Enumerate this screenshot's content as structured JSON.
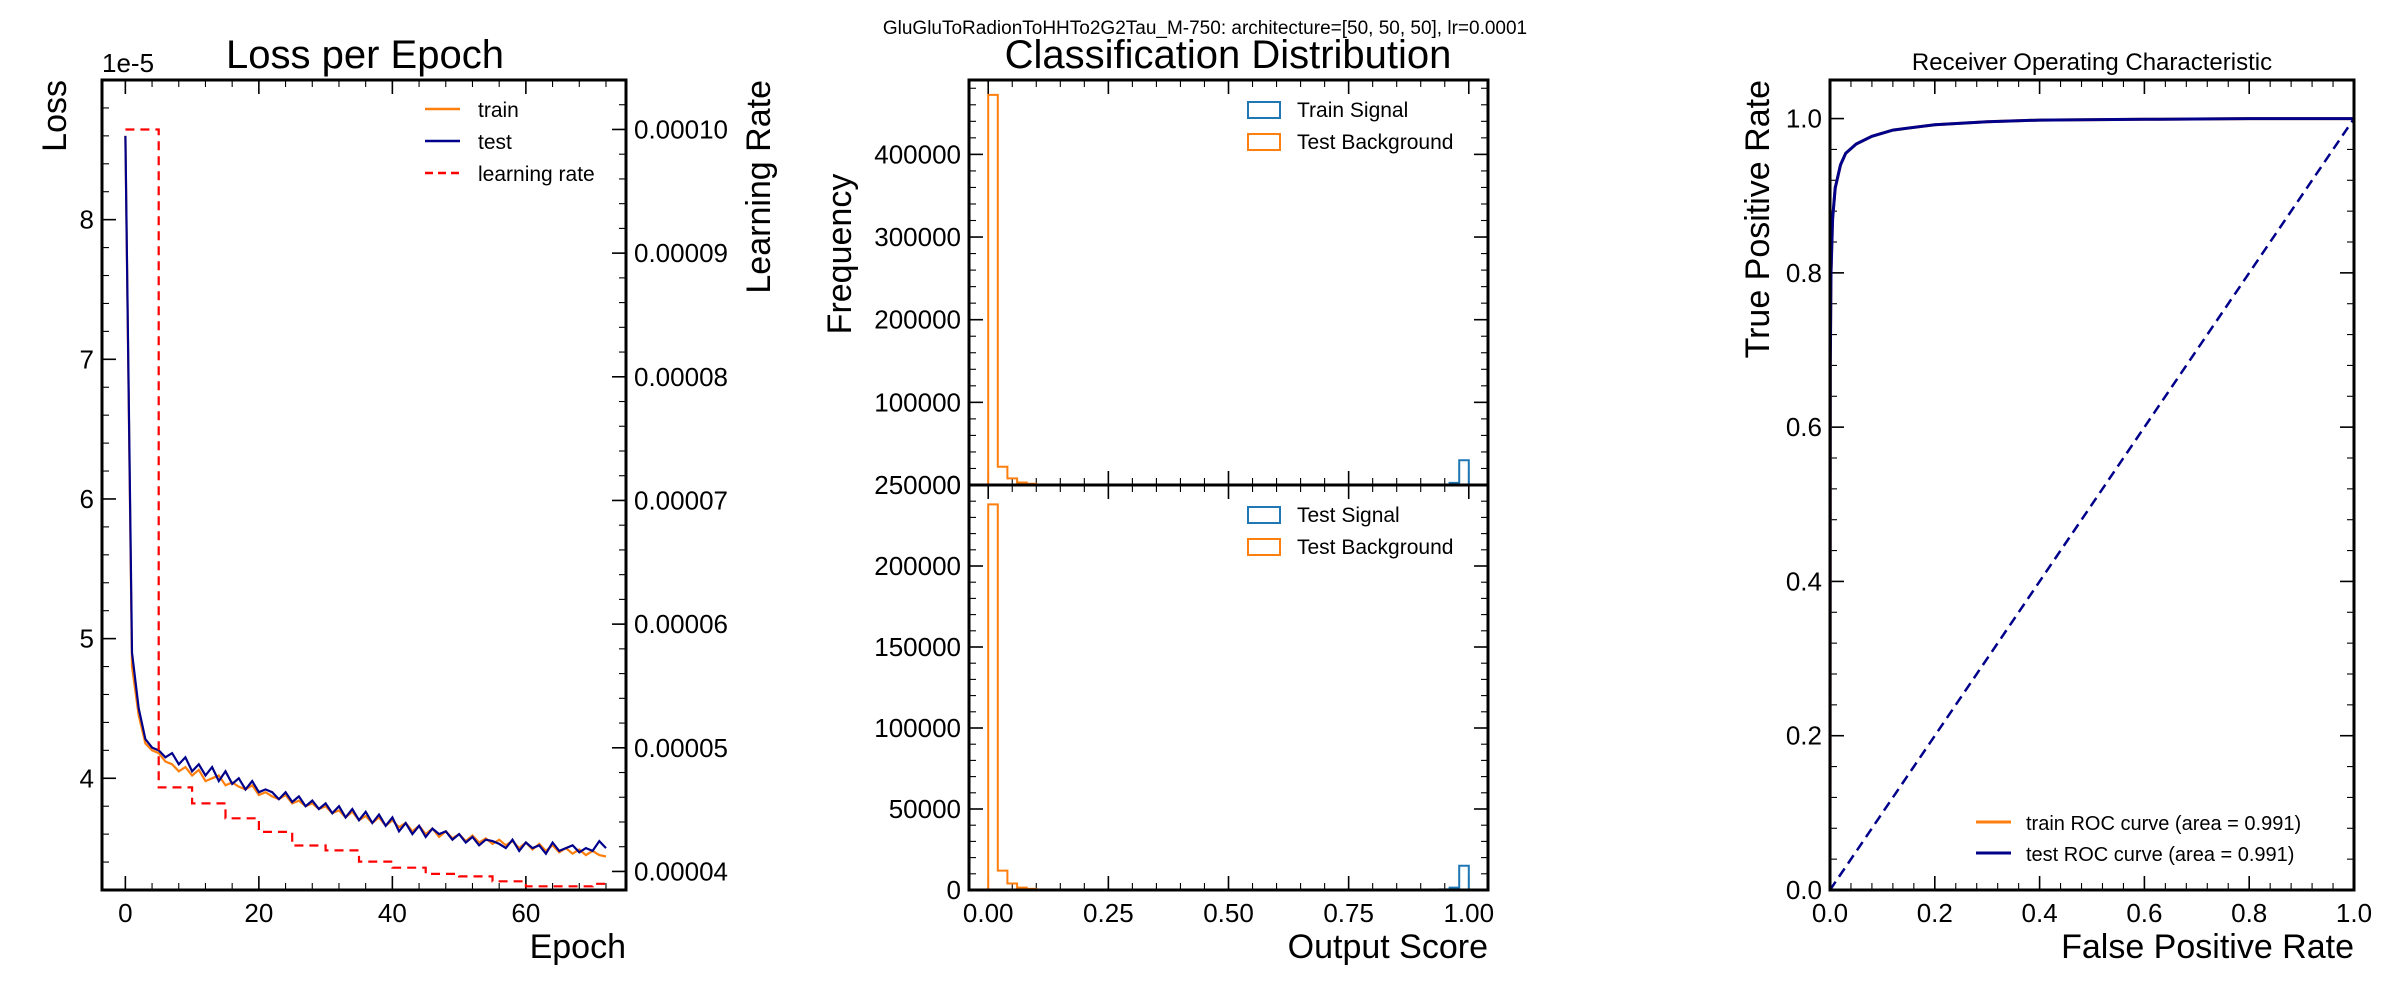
{
  "suptitle": "GluGluToRadionToHHTo2G2Tau_M-750: architecture=[50, 50, 50], lr=0.0001",
  "chart_data": [
    {
      "type": "line",
      "title": "Loss per Epoch",
      "xlabel": "Epoch",
      "ylabel": "Loss",
      "y2label": "Learning Rate",
      "offset_text": "1e-5",
      "xlim": [
        -3.5,
        75
      ],
      "ylim": [
        3.2,
        9.0
      ],
      "y2lim": [
        3.85e-05,
        0.000104
      ],
      "xticks": [
        0,
        20,
        40,
        60
      ],
      "xtick_labels": [
        "0",
        "20",
        "40",
        "60"
      ],
      "yticks": [
        4,
        5,
        6,
        7,
        8
      ],
      "ytick_labels": [
        "4",
        "5",
        "6",
        "7",
        "8"
      ],
      "y2ticks": [
        4e-05,
        5e-05,
        6e-05,
        7e-05,
        8e-05,
        9e-05,
        0.0001
      ],
      "y2tick_labels": [
        "0.00004",
        "0.00005",
        "0.00006",
        "0.00007",
        "0.00008",
        "0.00009",
        "0.00010"
      ],
      "legend_position": "top-right",
      "series": [
        {
          "name": "train",
          "color": "#ff7f0e",
          "style": "solid",
          "axis": "left",
          "x": [
            0,
            1,
            2,
            3,
            4,
            5,
            6,
            7,
            8,
            9,
            10,
            11,
            12,
            13,
            14,
            15,
            16,
            17,
            18,
            19,
            20,
            21,
            22,
            23,
            24,
            25,
            26,
            27,
            28,
            29,
            30,
            31,
            32,
            33,
            34,
            35,
            36,
            37,
            38,
            39,
            40,
            41,
            42,
            43,
            44,
            45,
            46,
            47,
            48,
            49,
            50,
            51,
            52,
            53,
            54,
            55,
            56,
            57,
            58,
            59,
            60,
            61,
            62,
            63,
            64,
            65,
            66,
            67,
            68,
            69,
            70,
            71,
            72
          ],
          "y": [
            8.6,
            4.8,
            4.45,
            4.25,
            4.2,
            4.18,
            4.12,
            4.1,
            4.05,
            4.08,
            4.02,
            4.06,
            3.98,
            4.0,
            4.02,
            3.95,
            3.97,
            3.94,
            3.92,
            3.95,
            3.88,
            3.9,
            3.87,
            3.85,
            3.88,
            3.82,
            3.84,
            3.8,
            3.82,
            3.78,
            3.8,
            3.75,
            3.77,
            3.72,
            3.76,
            3.7,
            3.73,
            3.68,
            3.72,
            3.66,
            3.7,
            3.65,
            3.68,
            3.62,
            3.66,
            3.6,
            3.64,
            3.58,
            3.62,
            3.57,
            3.6,
            3.55,
            3.59,
            3.54,
            3.57,
            3.53,
            3.56,
            3.52,
            3.55,
            3.5,
            3.54,
            3.49,
            3.53,
            3.48,
            3.52,
            3.47,
            3.5,
            3.46,
            3.49,
            3.45,
            3.48,
            3.45,
            3.44
          ]
        },
        {
          "name": "test",
          "color": "#00008b",
          "style": "solid",
          "axis": "left",
          "x": [
            0,
            1,
            2,
            3,
            4,
            5,
            6,
            7,
            8,
            9,
            10,
            11,
            12,
            13,
            14,
            15,
            16,
            17,
            18,
            19,
            20,
            21,
            22,
            23,
            24,
            25,
            26,
            27,
            28,
            29,
            30,
            31,
            32,
            33,
            34,
            35,
            36,
            37,
            38,
            39,
            40,
            41,
            42,
            43,
            44,
            45,
            46,
            47,
            48,
            49,
            50,
            51,
            52,
            53,
            54,
            55,
            56,
            57,
            58,
            59,
            60,
            61,
            62,
            63,
            64,
            65,
            66,
            67,
            68,
            69,
            70,
            71,
            72
          ],
          "y": [
            8.6,
            4.9,
            4.5,
            4.28,
            4.22,
            4.2,
            4.15,
            4.18,
            4.1,
            4.15,
            4.05,
            4.1,
            4.02,
            4.08,
            3.98,
            4.05,
            3.96,
            4.0,
            3.92,
            3.98,
            3.9,
            3.92,
            3.9,
            3.85,
            3.9,
            3.83,
            3.87,
            3.8,
            3.84,
            3.78,
            3.82,
            3.75,
            3.8,
            3.72,
            3.78,
            3.7,
            3.76,
            3.68,
            3.74,
            3.66,
            3.72,
            3.62,
            3.68,
            3.6,
            3.66,
            3.58,
            3.64,
            3.6,
            3.62,
            3.56,
            3.6,
            3.54,
            3.58,
            3.52,
            3.56,
            3.55,
            3.53,
            3.5,
            3.56,
            3.48,
            3.54,
            3.5,
            3.52,
            3.46,
            3.54,
            3.48,
            3.5,
            3.52,
            3.47,
            3.5,
            3.48,
            3.55,
            3.5
          ]
        },
        {
          "name": "learning rate",
          "color": "#ff0000",
          "style": "dashed",
          "axis": "right",
          "x": [
            0,
            5,
            5,
            10,
            10,
            15,
            15,
            20,
            20,
            25,
            25,
            30,
            30,
            35,
            35,
            40,
            40,
            45,
            45,
            50,
            50,
            55,
            55,
            60,
            60,
            65,
            65,
            70,
            70,
            72
          ],
          "y": [
            0.0001,
            0.0001,
            4.68e-05,
            4.68e-05,
            4.55e-05,
            4.55e-05,
            4.43e-05,
            4.43e-05,
            4.32e-05,
            4.32e-05,
            4.21e-05,
            4.21e-05,
            4.17e-05,
            4.17e-05,
            4.08e-05,
            4.08e-05,
            4.03e-05,
            4.03e-05,
            3.98e-05,
            3.98e-05,
            3.96e-05,
            3.96e-05,
            3.92e-05,
            3.92e-05,
            3.88e-05,
            3.88e-05,
            3.88e-05,
            3.88e-05,
            3.9e-05,
            3.9e-05
          ]
        }
      ]
    },
    {
      "type": "histogram",
      "title": "Classification Distribution",
      "ylabel": "Frequency",
      "xlabel": "Output Score",
      "xlim": [
        -0.04,
        1.04
      ],
      "bin_edges": [
        0.0,
        0.02,
        0.04,
        0.06,
        0.08,
        0.1,
        0.2,
        0.9,
        0.92,
        0.94,
        0.96,
        0.98,
        1.0
      ],
      "top": {
        "ylim": [
          0,
          490000
        ],
        "yticks": [
          0,
          100000,
          200000,
          300000,
          400000
        ],
        "ytick_labels": [
          "0",
          "100000",
          "200000",
          "300000",
          "400000"
        ],
        "legend_position": "top-right",
        "series": [
          {
            "name": "Train Signal",
            "color": "#1f77b4",
            "counts": [
              0,
              0,
              0,
              0,
              0,
              0,
              0,
              0,
              0,
              500,
              2500,
              30000
            ]
          },
          {
            "name": "Test Background",
            "color": "#ff7f0e",
            "counts": [
              472000,
              22000,
              8000,
              3000,
              1500,
              300,
              0,
              0,
              0,
              0,
              0,
              0
            ]
          }
        ]
      },
      "bottom": {
        "ylim": [
          0,
          250000
        ],
        "yticks": [
          0,
          50000,
          100000,
          150000,
          200000,
          250000
        ],
        "ytick_labels": [
          "0",
          "50000",
          "100000",
          "150000",
          "200000",
          "250000"
        ],
        "xticks": [
          0.0,
          0.25,
          0.5,
          0.75,
          1.0
        ],
        "xtick_labels": [
          "0.00",
          "0.25",
          "0.50",
          "0.75",
          "1.00"
        ],
        "legend_position": "top-right",
        "series": [
          {
            "name": "Test Signal",
            "color": "#1f77b4",
            "counts": [
              0,
              0,
              0,
              0,
              0,
              0,
              0,
              0,
              0,
              400,
              1500,
              15000
            ]
          },
          {
            "name": "Test Background",
            "color": "#ff7f0e",
            "counts": [
              238000,
              12000,
              4000,
              1500,
              700,
              150,
              0,
              0,
              0,
              0,
              0,
              0
            ]
          }
        ]
      }
    },
    {
      "type": "line",
      "title": "Receiver Operating Characteristic",
      "xlabel": "False Positive Rate",
      "ylabel": "True Positive Rate",
      "xlim": [
        0,
        1
      ],
      "ylim": [
        0,
        1.05
      ],
      "xticks": [
        0,
        0.2,
        0.4,
        0.6,
        0.8,
        1.0
      ],
      "xtick_labels": [
        "0.0",
        "0.2",
        "0.4",
        "0.6",
        "0.8",
        "1.0"
      ],
      "yticks": [
        0,
        0.2,
        0.4,
        0.6,
        0.8,
        1.0
      ],
      "ytick_labels": [
        "0.0",
        "0.2",
        "0.4",
        "0.6",
        "0.8",
        "1.0"
      ],
      "legend_position": "lower-right",
      "series": [
        {
          "name": "train ROC curve (area = 0.991)",
          "color": "#ff7f0e",
          "style": "solid",
          "x": [
            0,
            0.0005,
            0.002,
            0.005,
            0.01,
            0.02,
            0.03,
            0.05,
            0.08,
            0.12,
            0.2,
            0.3,
            0.4,
            0.6,
            0.8,
            1.0
          ],
          "y": [
            0,
            0.68,
            0.8,
            0.87,
            0.91,
            0.94,
            0.955,
            0.967,
            0.977,
            0.985,
            0.992,
            0.996,
            0.998,
            0.999,
            1.0,
            1.0
          ]
        },
        {
          "name": "test ROC curve (area = 0.991)",
          "color": "#00008b",
          "style": "solid",
          "x": [
            0,
            0.0005,
            0.002,
            0.005,
            0.01,
            0.02,
            0.03,
            0.05,
            0.08,
            0.12,
            0.2,
            0.3,
            0.4,
            0.6,
            0.8,
            1.0
          ],
          "y": [
            0,
            0.68,
            0.8,
            0.87,
            0.91,
            0.94,
            0.955,
            0.967,
            0.977,
            0.985,
            0.992,
            0.996,
            0.998,
            0.999,
            1.0,
            1.0
          ]
        },
        {
          "name": "",
          "color": "#00008b",
          "style": "dashed",
          "x": [
            0,
            1
          ],
          "y": [
            0,
            1
          ]
        }
      ]
    }
  ]
}
